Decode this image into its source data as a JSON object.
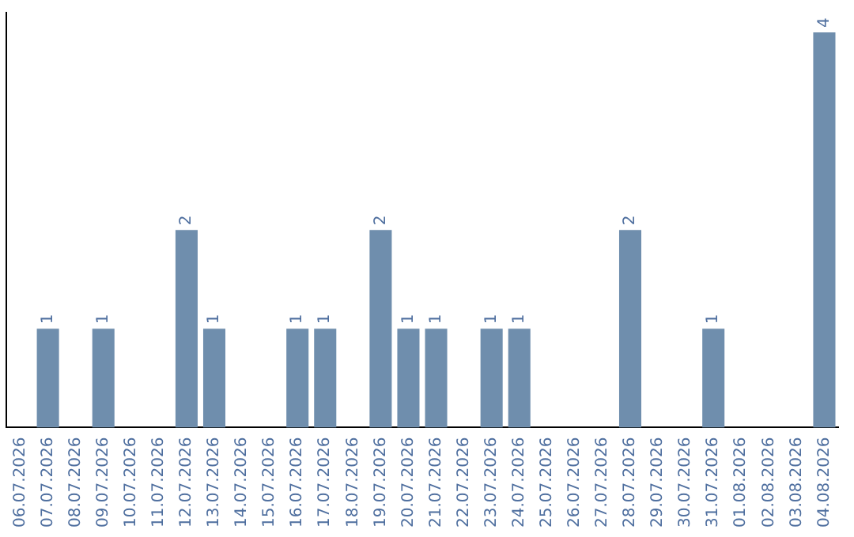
{
  "chart_data": {
    "type": "bar",
    "categories": [
      "06.07.2026",
      "07.07.2026",
      "08.07.2026",
      "09.07.2026",
      "10.07.2026",
      "11.07.2026",
      "12.07.2026",
      "13.07.2026",
      "14.07.2026",
      "15.07.2026",
      "16.07.2026",
      "17.07.2026",
      "18.07.2026",
      "19.07.2026",
      "20.07.2026",
      "21.07.2026",
      "22.07.2026",
      "23.07.2026",
      "24.07.2026",
      "25.07.2026",
      "26.07.2026",
      "27.07.2026",
      "28.07.2026",
      "29.07.2026",
      "30.07.2026",
      "31.07.2026",
      "01.08.2026",
      "02.08.2026",
      "03.08.2026",
      "04.08.2026"
    ],
    "values": [
      0,
      1,
      0,
      1,
      0,
      0,
      2,
      1,
      0,
      0,
      1,
      1,
      0,
      2,
      1,
      1,
      0,
      1,
      1,
      0,
      0,
      0,
      2,
      0,
      0,
      1,
      0,
      0,
      0,
      4
    ],
    "value_labels": [
      null,
      "1",
      null,
      "1",
      null,
      null,
      "2",
      "1",
      null,
      null,
      "1",
      "1",
      null,
      "2",
      "1",
      "1",
      null,
      "1",
      "1",
      null,
      null,
      null,
      "2",
      null,
      null,
      "1",
      null,
      null,
      null,
      "4"
    ],
    "color": "#6f8ead",
    "ylim": [
      0,
      4.2
    ],
    "tick_labels": "x",
    "grid": false,
    "legend": false
  }
}
